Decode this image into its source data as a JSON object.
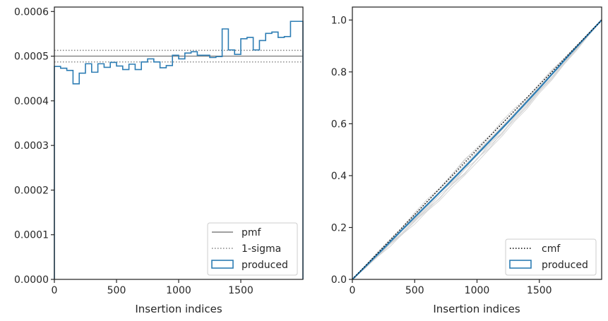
{
  "chart_data": [
    {
      "type": "line",
      "title": "",
      "xlabel": "Insertion indices",
      "ylabel": "",
      "xlim": [
        0,
        2000
      ],
      "ylim": [
        0,
        0.00061
      ],
      "xticks": [
        0,
        500,
        1000,
        1500
      ],
      "xtick_labels": [
        "0",
        "500",
        "1000",
        "1500"
      ],
      "yticks": [
        0,
        0.0001,
        0.0002,
        0.0003,
        0.0004,
        0.0005,
        0.0006
      ],
      "ytick_labels": [
        "0.0000",
        "0.0001",
        "0.0002",
        "0.0003",
        "0.0004",
        "0.0005",
        "0.0006"
      ],
      "grid": false,
      "legend_position": "bottom-right",
      "pmf": 0.0005,
      "sigma_band": [
        0.000487,
        0.000513
      ],
      "hist_bin_edges": [
        0,
        50,
        100,
        150,
        200,
        250,
        300,
        350,
        400,
        450,
        500,
        550,
        600,
        650,
        700,
        750,
        800,
        850,
        900,
        950,
        1000,
        1050,
        1100,
        1150,
        1200,
        1250,
        1300,
        1350,
        1400,
        1450,
        1500,
        1550,
        1600,
        1650,
        1700,
        1750,
        1800,
        1850,
        1900,
        1950,
        2000
      ],
      "produced_values": [
        0.000477,
        0.000473,
        0.000468,
        0.000438,
        0.000462,
        0.000483,
        0.000464,
        0.000483,
        0.000475,
        0.000486,
        0.000478,
        0.00047,
        0.000482,
        0.00047,
        0.000487,
        0.000494,
        0.000487,
        0.000474,
        0.000479,
        0.000502,
        0.000494,
        0.000507,
        0.00051,
        0.000502,
        0.000502,
        0.000497,
        0.000499,
        0.000561,
        0.000514,
        0.000504,
        0.000539,
        0.000542,
        0.000514,
        0.000535,
        0.000551,
        0.000554,
        0.000542,
        0.000544,
        0.000578,
        0.000578
      ],
      "legend": [
        {
          "label": "pmf",
          "color": "#808080",
          "style": "solid"
        },
        {
          "label": "1-sigma",
          "color": "#808080",
          "style": "dotted"
        },
        {
          "label": "produced",
          "color": "#2d7db4",
          "style": "box"
        }
      ]
    },
    {
      "type": "line",
      "title": "",
      "xlabel": "Insertion indices",
      "ylabel": "",
      "xlim": [
        0,
        2000
      ],
      "ylim": [
        0,
        1.05
      ],
      "xticks": [
        0,
        500,
        1000,
        1500
      ],
      "xtick_labels": [
        "0",
        "500",
        "1000",
        "1500"
      ],
      "yticks": [
        0,
        0.2,
        0.4,
        0.6,
        0.8,
        1.0
      ],
      "ytick_labels": [
        "0.0",
        "0.2",
        "0.4",
        "0.6",
        "0.8",
        "1.0"
      ],
      "grid": false,
      "legend_position": "bottom-right",
      "cmf": {
        "x": [
          0,
          2000
        ],
        "y": [
          0,
          1
        ]
      },
      "produced_cdf": {
        "x": [
          0,
          250,
          500,
          750,
          1000,
          1250,
          1500,
          1750,
          2000
        ],
        "y": [
          0,
          0.119,
          0.24,
          0.359,
          0.482,
          0.607,
          0.737,
          0.871,
          1.0
        ]
      },
      "background_curves_color": "#d3d3d3",
      "background_curves_count": 10,
      "legend": [
        {
          "label": "cmf",
          "color": "#000000",
          "style": "dotted"
        },
        {
          "label": "produced",
          "color": "#2d7db4",
          "style": "box"
        }
      ]
    }
  ],
  "colors": {
    "produced": "#2d7db4",
    "reference": "#808080",
    "cmf": "#000000",
    "spine": "#262626",
    "background_curves": "#d3d3d3"
  }
}
